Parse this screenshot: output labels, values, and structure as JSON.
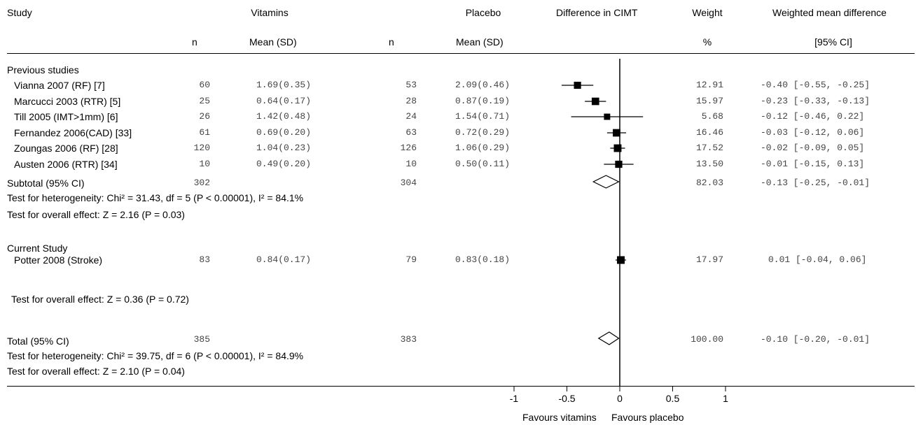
{
  "header": {
    "study": "Study",
    "vitamins": "Vitamins",
    "placebo": "Placebo",
    "difference": "Difference in CIMT",
    "weight": "Weight",
    "wmd": "Weighted mean difference",
    "n1": "n",
    "mean1": "Mean (SD)",
    "n2": "n",
    "mean2": "Mean (SD)",
    "pct": "%",
    "ci": "[95% CI]"
  },
  "groups": {
    "previous": "Previous studies",
    "current": "Current Study"
  },
  "subtotal": {
    "label": "Subtotal (95% CI)",
    "n1": "302",
    "n2": "304",
    "weight": "82.03",
    "wmd": "-0.13 [-0.25, -0.01]",
    "heterogeneity": "Test for heterogeneity: Chi² = 31.43, df = 5 (P < 0.00001), I² = 84.1%",
    "overall": "Test for overall effect: Z = 2.16 (P = 0.03)"
  },
  "current_overall": "Test for overall effect: Z = 0.36 (P = 0.72)",
  "total": {
    "label": "Total (95% CI)",
    "n1": "385",
    "n2": "383",
    "weight": "100.00",
    "wmd": "-0.10 [-0.20, -0.01]",
    "heterogeneity": "Test for heterogeneity: Chi² = 39.75, df = 6 (P < 0.00001), I² = 84.9%",
    "overall": "Test for overall effect: Z = 2.10 (P = 0.04)"
  },
  "axis": {
    "ticks": [
      "-1",
      "-0.5",
      "0",
      "0.5",
      "1"
    ],
    "left_label": "Favours vitamins",
    "right_label": "Favours placebo"
  },
  "chart_data": {
    "type": "scatter",
    "subtype": "forest-plot",
    "xlim": [
      -1,
      1
    ],
    "xticks": [
      -1,
      -0.5,
      0,
      0.5,
      1
    ],
    "reference_line": 0,
    "studies": [
      {
        "label": "Vianna 2007 (RF) [7]",
        "n1": "60",
        "vit": "1.69(0.35)",
        "n2": "53",
        "pla": "2.09(0.46)",
        "weight": "12.91",
        "wmd": "-0.40 [-0.55, -0.25]",
        "est": -0.4,
        "lo": -0.55,
        "hi": -0.25
      },
      {
        "label": "Marcucci 2003 (RTR) [5]",
        "n1": "25",
        "vit": "0.64(0.17)",
        "n2": "28",
        "pla": "0.87(0.19)",
        "weight": "15.97",
        "wmd": "-0.23 [-0.33, -0.13]",
        "est": -0.23,
        "lo": -0.33,
        "hi": -0.13
      },
      {
        "label": "Till 2005 (IMT>1mm) [6]",
        "n1": "26",
        "vit": "1.42(0.48)",
        "n2": "24",
        "pla": "1.54(0.71)",
        "weight": "5.68",
        "wmd": "-0.12 [-0.46, 0.22]",
        "est": -0.12,
        "lo": -0.46,
        "hi": 0.22
      },
      {
        "label": "Fernandez 2006(CAD) [33]",
        "n1": "61",
        "vit": "0.69(0.20)",
        "n2": "63",
        "pla": "0.72(0.29)",
        "weight": "16.46",
        "wmd": "-0.03 [-0.12, 0.06]",
        "est": -0.03,
        "lo": -0.12,
        "hi": 0.06
      },
      {
        "label": "Zoungas 2006 (RF) [28]",
        "n1": "120",
        "vit": "1.04(0.23)",
        "n2": "126",
        "pla": "1.06(0.29)",
        "weight": "17.52",
        "wmd": "-0.02 [-0.09, 0.05]",
        "est": -0.02,
        "lo": -0.09,
        "hi": 0.05
      },
      {
        "label": "Austen 2006 (RTR) [34]",
        "n1": "10",
        "vit": "0.49(0.20)",
        "n2": "10",
        "pla": "0.50(0.11)",
        "weight": "13.50",
        "wmd": "-0.01 [-0.15, 0.13]",
        "est": -0.01,
        "lo": -0.15,
        "hi": 0.13
      }
    ],
    "current": [
      {
        "label": "Potter 2008 (Stroke)",
        "n1": "83",
        "vit": "0.84(0.17)",
        "n2": "79",
        "pla": "0.83(0.18)",
        "weight": "17.97",
        "wmd": "0.01 [-0.04, 0.06]",
        "est": 0.01,
        "lo": -0.04,
        "hi": 0.06
      }
    ],
    "diamonds": [
      {
        "name": "Subtotal (95% CI)",
        "est": -0.13,
        "lo": -0.25,
        "hi": -0.01
      },
      {
        "name": "Total (95% CI)",
        "est": -0.1,
        "lo": -0.2,
        "hi": -0.01
      }
    ]
  }
}
